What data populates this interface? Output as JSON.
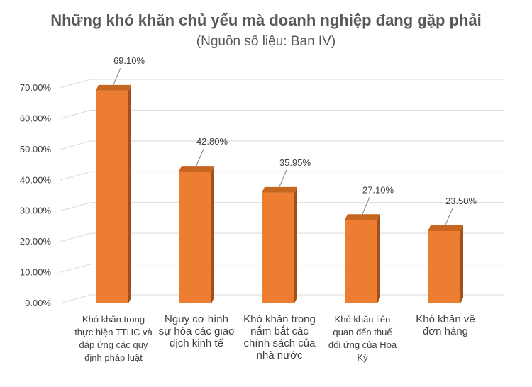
{
  "chart_data": {
    "type": "bar",
    "title": "Những khó khăn chủ yếu mà doanh nghiệp đang gặp phải",
    "subtitle": "(Nguồn số liệu: Ban IV)",
    "categories": [
      [
        "Khó khăn trong",
        "thực hiện TTHC và",
        "đáp ứng các quy",
        "định pháp luật"
      ],
      [
        "Nguy cơ hình",
        "sự hóa các giao",
        "dịch kinh tế"
      ],
      [
        "Khó khăn trong",
        "nắm bắt các",
        "chính sách của",
        "nhà nước"
      ],
      [
        "Khó khăn liên",
        "quan đến thuế",
        "đối ứng của Hoa",
        "Kỳ"
      ],
      [
        "Khó khăn về",
        "đơn hàng"
      ]
    ],
    "values": [
      69.1,
      42.8,
      35.95,
      27.1,
      23.5
    ],
    "data_labels": [
      "69.10%",
      "42.80%",
      "35.95%",
      "27.10%",
      "23.50%"
    ],
    "y_ticks": [
      "0.00%",
      "10.00%",
      "20.00%",
      "30.00%",
      "40.00%",
      "50.00%",
      "60.00%",
      "70.00%"
    ],
    "ylim": [
      0,
      70
    ],
    "grid": true,
    "legend": "none",
    "style": "3d-column",
    "colors": {
      "bar_front": "#ED7D31",
      "bar_side": "#A0501A",
      "bar_top": "#C8651F",
      "grid": "#D9D9D9",
      "text": "#404040",
      "title": "#595959"
    }
  }
}
